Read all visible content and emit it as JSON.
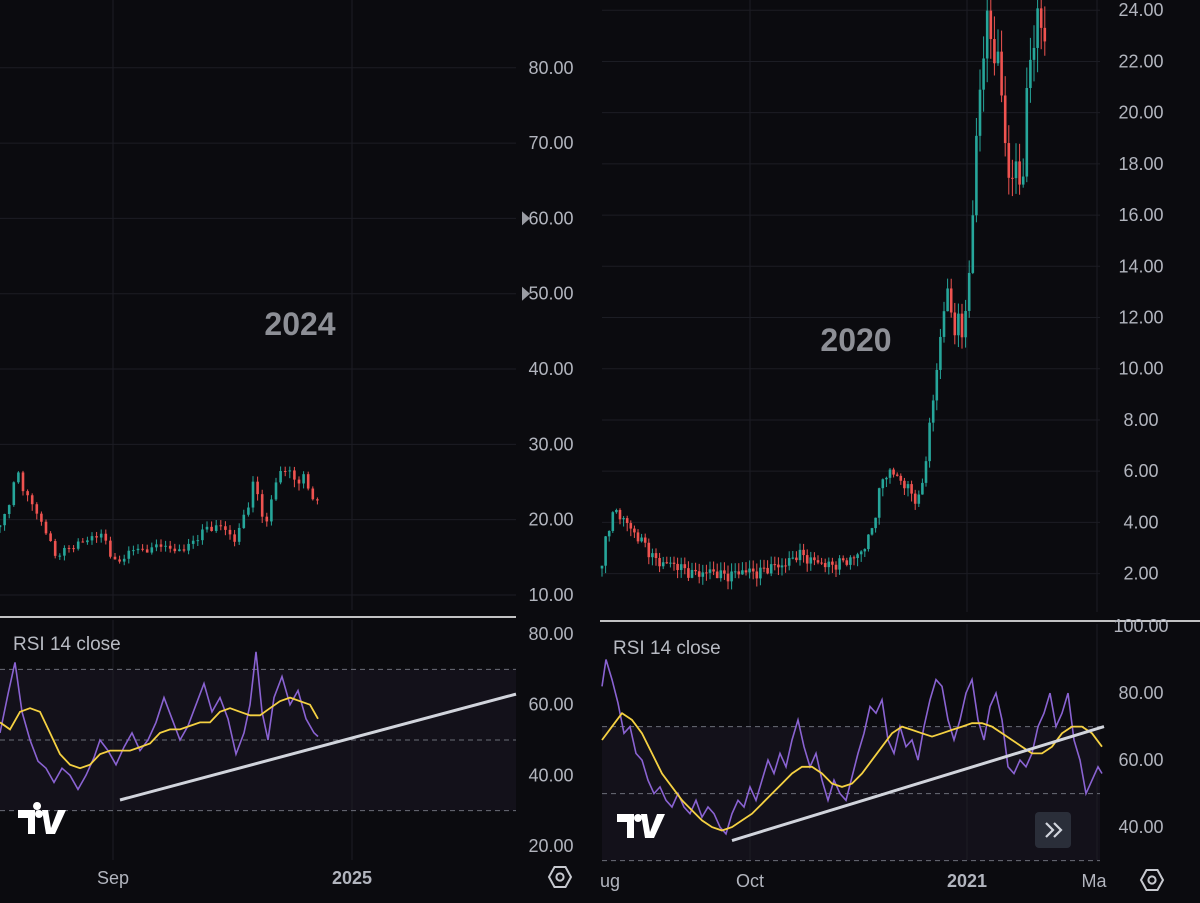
{
  "colors": {
    "background": "#0b0b0f",
    "grid": "#1c1d24",
    "axis_text": "#b2b5be",
    "up": "#26a69a",
    "down": "#ef5350",
    "rsi_line": "#7e57c2",
    "rsi_ma": "#f5d142",
    "trendline": "#d1d4dc",
    "divider": "#ffffff"
  },
  "chart_data": [
    {
      "type": "candlestick",
      "panel": "left",
      "watermark": "2024",
      "y_ticks": [
        "10.00",
        "20.00",
        "30.00",
        "40.00",
        "50.00",
        "60.00",
        "70.00",
        "80.00"
      ],
      "ylim": [
        8,
        89
      ],
      "price_markers": [
        60,
        50
      ],
      "x_labels": [
        "Sep",
        "2025"
      ],
      "close_path": [
        [
          0,
          19
        ],
        [
          6,
          21
        ],
        [
          12,
          24
        ],
        [
          18,
          26
        ],
        [
          24,
          24
        ],
        [
          32,
          22
        ],
        [
          40,
          20
        ],
        [
          48,
          18
        ],
        [
          55,
          15
        ],
        [
          62,
          16
        ],
        [
          70,
          16
        ],
        [
          78,
          17
        ],
        [
          86,
          17
        ],
        [
          94,
          18
        ],
        [
          100,
          18
        ],
        [
          106,
          17
        ],
        [
          112,
          15
        ],
        [
          118,
          14
        ],
        [
          124,
          15
        ],
        [
          130,
          16
        ],
        [
          136,
          16
        ],
        [
          144,
          16
        ],
        [
          152,
          16
        ],
        [
          160,
          17
        ],
        [
          168,
          16
        ],
        [
          176,
          16
        ],
        [
          184,
          16
        ],
        [
          192,
          17
        ],
        [
          200,
          18
        ],
        [
          208,
          19
        ],
        [
          216,
          19
        ],
        [
          224,
          19
        ],
        [
          230,
          18
        ],
        [
          236,
          17
        ],
        [
          242,
          20
        ],
        [
          248,
          22
        ],
        [
          254,
          25
        ],
        [
          260,
          22
        ],
        [
          266,
          19
        ],
        [
          272,
          23
        ],
        [
          278,
          26
        ],
        [
          284,
          27
        ],
        [
          290,
          26
        ],
        [
          296,
          25
        ],
        [
          302,
          26
        ],
        [
          308,
          24
        ],
        [
          314,
          23
        ],
        [
          319,
          22
        ]
      ]
    },
    {
      "type": "line",
      "panel": "left",
      "indicator": "RSI 14 close",
      "y_ticks": [
        "20.00",
        "40.00",
        "60.00",
        "80.00"
      ],
      "ylim": [
        16,
        84
      ],
      "bands": [
        30,
        50,
        70
      ],
      "rsi": [
        [
          0,
          52
        ],
        [
          8,
          63
        ],
        [
          15,
          72
        ],
        [
          22,
          58
        ],
        [
          30,
          50
        ],
        [
          38,
          44
        ],
        [
          46,
          42
        ],
        [
          54,
          38
        ],
        [
          62,
          42
        ],
        [
          70,
          40
        ],
        [
          78,
          36
        ],
        [
          86,
          40
        ],
        [
          94,
          45
        ],
        [
          100,
          50
        ],
        [
          108,
          47
        ],
        [
          116,
          43
        ],
        [
          124,
          48
        ],
        [
          132,
          52
        ],
        [
          140,
          47
        ],
        [
          148,
          50
        ],
        [
          156,
          55
        ],
        [
          164,
          62
        ],
        [
          172,
          56
        ],
        [
          180,
          50
        ],
        [
          188,
          54
        ],
        [
          196,
          60
        ],
        [
          204,
          66
        ],
        [
          212,
          58
        ],
        [
          220,
          62
        ],
        [
          228,
          56
        ],
        [
          236,
          46
        ],
        [
          244,
          52
        ],
        [
          250,
          60
        ],
        [
          256,
          75
        ],
        [
          262,
          58
        ],
        [
          268,
          50
        ],
        [
          274,
          62
        ],
        [
          282,
          68
        ],
        [
          290,
          60
        ],
        [
          298,
          64
        ],
        [
          306,
          56
        ],
        [
          314,
          52
        ],
        [
          318,
          51
        ]
      ],
      "rsi_ma": [
        [
          0,
          55
        ],
        [
          10,
          53
        ],
        [
          20,
          58
        ],
        [
          30,
          59
        ],
        [
          40,
          58
        ],
        [
          50,
          52
        ],
        [
          60,
          46
        ],
        [
          70,
          43
        ],
        [
          80,
          42
        ],
        [
          90,
          43
        ],
        [
          100,
          46
        ],
        [
          110,
          47
        ],
        [
          120,
          47
        ],
        [
          130,
          47
        ],
        [
          140,
          48
        ],
        [
          150,
          49
        ],
        [
          160,
          52
        ],
        [
          170,
          53
        ],
        [
          180,
          53
        ],
        [
          190,
          54
        ],
        [
          200,
          55
        ],
        [
          210,
          55
        ],
        [
          220,
          58
        ],
        [
          230,
          59
        ],
        [
          240,
          58
        ],
        [
          250,
          57
        ],
        [
          260,
          57
        ],
        [
          270,
          59
        ],
        [
          280,
          61
        ],
        [
          290,
          62
        ],
        [
          300,
          61
        ],
        [
          310,
          60
        ],
        [
          318,
          56
        ]
      ],
      "trendline": [
        [
          120,
          33
        ],
        [
          516,
          63
        ]
      ],
      "x_labels": [
        "Sep",
        "2025"
      ]
    },
    {
      "type": "candlestick",
      "panel": "right",
      "watermark": "2020",
      "y_ticks": [
        "2.00",
        "4.00",
        "6.00",
        "8.00",
        "10.00",
        "12.00",
        "14.00",
        "16.00",
        "18.00",
        "20.00",
        "22.00",
        "24.00"
      ],
      "ylim": [
        0.5,
        24.4
      ],
      "x_labels": [
        "Aug",
        "Oct",
        "2021",
        "Mar"
      ],
      "close_path": [
        [
          602,
          2.2
        ],
        [
          606,
          3.5
        ],
        [
          610,
          4.0
        ],
        [
          614,
          4.4
        ],
        [
          620,
          4.3
        ],
        [
          626,
          4.0
        ],
        [
          632,
          3.7
        ],
        [
          638,
          3.4
        ],
        [
          644,
          3.2
        ],
        [
          650,
          2.8
        ],
        [
          656,
          2.5
        ],
        [
          662,
          2.4
        ],
        [
          670,
          2.4
        ],
        [
          678,
          2.3
        ],
        [
          686,
          2.1
        ],
        [
          694,
          2.0
        ],
        [
          702,
          2.0
        ],
        [
          710,
          2.1
        ],
        [
          718,
          2.0
        ],
        [
          726,
          1.9
        ],
        [
          734,
          2.0
        ],
        [
          742,
          2.1
        ],
        [
          750,
          2.1
        ],
        [
          758,
          2.0
        ],
        [
          766,
          2.2
        ],
        [
          774,
          2.3
        ],
        [
          782,
          2.3
        ],
        [
          790,
          2.5
        ],
        [
          798,
          2.8
        ],
        [
          806,
          2.6
        ],
        [
          814,
          2.5
        ],
        [
          822,
          2.4
        ],
        [
          830,
          2.3
        ],
        [
          838,
          2.4
        ],
        [
          846,
          2.5
        ],
        [
          854,
          2.6
        ],
        [
          862,
          2.9
        ],
        [
          868,
          3.3
        ],
        [
          874,
          4.0
        ],
        [
          878,
          5.0
        ],
        [
          884,
          5.8
        ],
        [
          890,
          6.0
        ],
        [
          896,
          5.8
        ],
        [
          902,
          5.6
        ],
        [
          908,
          5.3
        ],
        [
          914,
          5.0
        ],
        [
          918,
          4.8
        ],
        [
          922,
          5.4
        ],
        [
          926,
          6.5
        ],
        [
          930,
          8.0
        ],
        [
          934,
          9.0
        ],
        [
          938,
          10.2
        ],
        [
          942,
          12.0
        ],
        [
          946,
          13.0
        ],
        [
          950,
          12.5
        ],
        [
          954,
          11.5
        ],
        [
          958,
          12.0
        ],
        [
          962,
          11.2
        ],
        [
          966,
          12.5
        ],
        [
          970,
          14.0
        ],
        [
          974,
          17.0
        ],
        [
          978,
          20.0
        ],
        [
          982,
          22.0
        ],
        [
          986,
          23.5
        ],
        [
          990,
          23.0
        ],
        [
          994,
          22.5
        ],
        [
          998,
          22.0
        ],
        [
          1002,
          20.5
        ],
        [
          1006,
          18.5
        ],
        [
          1010,
          17.0
        ],
        [
          1014,
          18.0
        ],
        [
          1018,
          17.5
        ],
        [
          1022,
          17.0
        ],
        [
          1026,
          20.0
        ],
        [
          1030,
          22.0
        ],
        [
          1034,
          23.0
        ],
        [
          1038,
          23.8
        ],
        [
          1042,
          23.2
        ],
        [
          1046,
          22.6
        ]
      ]
    },
    {
      "type": "line",
      "panel": "right",
      "indicator": "RSI 14 close",
      "y_ticks": [
        "40.00",
        "60.00",
        "80.00",
        "100.00"
      ],
      "ylim": [
        30.2,
        100.6
      ],
      "bands": [
        30,
        50,
        70
      ],
      "rsi": [
        [
          602,
          82
        ],
        [
          606,
          90
        ],
        [
          612,
          84
        ],
        [
          618,
          77
        ],
        [
          624,
          68
        ],
        [
          630,
          70
        ],
        [
          636,
          62
        ],
        [
          642,
          60
        ],
        [
          648,
          54
        ],
        [
          654,
          50
        ],
        [
          660,
          52
        ],
        [
          666,
          48
        ],
        [
          672,
          46
        ],
        [
          678,
          50
        ],
        [
          684,
          46
        ],
        [
          690,
          44
        ],
        [
          696,
          48
        ],
        [
          702,
          43
        ],
        [
          708,
          46
        ],
        [
          714,
          44
        ],
        [
          720,
          40
        ],
        [
          726,
          38
        ],
        [
          732,
          44
        ],
        [
          738,
          48
        ],
        [
          744,
          46
        ],
        [
          750,
          52
        ],
        [
          756,
          48
        ],
        [
          762,
          54
        ],
        [
          768,
          60
        ],
        [
          774,
          56
        ],
        [
          780,
          62
        ],
        [
          786,
          58
        ],
        [
          792,
          66
        ],
        [
          798,
          72
        ],
        [
          804,
          64
        ],
        [
          810,
          58
        ],
        [
          816,
          62
        ],
        [
          822,
          54
        ],
        [
          828,
          48
        ],
        [
          834,
          54
        ],
        [
          840,
          50
        ],
        [
          846,
          48
        ],
        [
          852,
          55
        ],
        [
          858,
          62
        ],
        [
          864,
          68
        ],
        [
          870,
          76
        ],
        [
          876,
          74
        ],
        [
          882,
          78
        ],
        [
          888,
          66
        ],
        [
          894,
          62
        ],
        [
          900,
          70
        ],
        [
          906,
          64
        ],
        [
          912,
          66
        ],
        [
          918,
          60
        ],
        [
          924,
          70
        ],
        [
          930,
          78
        ],
        [
          936,
          84
        ],
        [
          942,
          82
        ],
        [
          948,
          72
        ],
        [
          954,
          66
        ],
        [
          960,
          72
        ],
        [
          966,
          80
        ],
        [
          972,
          84
        ],
        [
          978,
          72
        ],
        [
          984,
          66
        ],
        [
          990,
          76
        ],
        [
          996,
          80
        ],
        [
          1002,
          72
        ],
        [
          1008,
          58
        ],
        [
          1014,
          56
        ],
        [
          1020,
          60
        ],
        [
          1026,
          58
        ],
        [
          1032,
          62
        ],
        [
          1038,
          70
        ],
        [
          1044,
          74
        ],
        [
          1050,
          80
        ],
        [
          1056,
          70
        ],
        [
          1062,
          74
        ],
        [
          1068,
          80
        ],
        [
          1074,
          66
        ],
        [
          1080,
          60
        ],
        [
          1086,
          50
        ],
        [
          1092,
          54
        ],
        [
          1098,
          58
        ],
        [
          1102,
          56
        ]
      ],
      "rsi_ma": [
        [
          602,
          66
        ],
        [
          612,
          70
        ],
        [
          622,
          74
        ],
        [
          632,
          72
        ],
        [
          642,
          68
        ],
        [
          652,
          62
        ],
        [
          662,
          56
        ],
        [
          672,
          52
        ],
        [
          682,
          48
        ],
        [
          692,
          45
        ],
        [
          702,
          42
        ],
        [
          712,
          40
        ],
        [
          722,
          39
        ],
        [
          732,
          40
        ],
        [
          742,
          42
        ],
        [
          752,
          44
        ],
        [
          762,
          47
        ],
        [
          772,
          50
        ],
        [
          782,
          53
        ],
        [
          792,
          56
        ],
        [
          802,
          58
        ],
        [
          812,
          58
        ],
        [
          822,
          56
        ],
        [
          832,
          53
        ],
        [
          842,
          52
        ],
        [
          852,
          53
        ],
        [
          862,
          56
        ],
        [
          872,
          60
        ],
        [
          882,
          64
        ],
        [
          892,
          68
        ],
        [
          902,
          70
        ],
        [
          912,
          69
        ],
        [
          922,
          68
        ],
        [
          932,
          67
        ],
        [
          942,
          68
        ],
        [
          952,
          69
        ],
        [
          962,
          70
        ],
        [
          972,
          71
        ],
        [
          982,
          71
        ],
        [
          992,
          70
        ],
        [
          1002,
          68
        ],
        [
          1012,
          66
        ],
        [
          1022,
          64
        ],
        [
          1032,
          62
        ],
        [
          1042,
          62
        ],
        [
          1052,
          64
        ],
        [
          1062,
          68
        ],
        [
          1072,
          70
        ],
        [
          1082,
          70
        ],
        [
          1092,
          68
        ],
        [
          1102,
          64
        ]
      ],
      "trendline": [
        [
          732,
          36
        ],
        [
          1104,
          70
        ]
      ],
      "x_labels": [
        "Aug",
        "Oct",
        "2021",
        "Mar"
      ]
    }
  ],
  "legend": {
    "left": "RSI 14 close",
    "right": "RSI 14 close"
  },
  "time_axis": {
    "left": [
      "Sep",
      "2025"
    ],
    "right": [
      "ug",
      "Oct",
      "2021",
      "Ma"
    ]
  },
  "icons": {
    "logo": "tradingview-logo-icon",
    "settings": "settings-hexagon-icon",
    "scroll": "scroll-to-realtime-icon"
  }
}
